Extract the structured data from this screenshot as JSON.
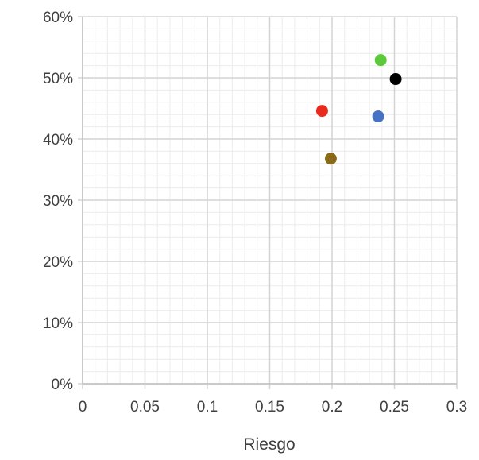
{
  "chart_data": {
    "type": "scatter",
    "title": "",
    "xlabel": "Riesgo",
    "ylabel": "",
    "xlim": [
      0,
      0.3
    ],
    "ylim": [
      0,
      0.6
    ],
    "x_ticks": [
      0,
      0.05,
      0.1,
      0.15,
      0.2,
      0.25,
      0.3
    ],
    "x_tick_labels": [
      "0",
      "0.05",
      "0.1",
      "0.15",
      "0.2",
      "0.25",
      "0.3"
    ],
    "y_ticks": [
      0,
      0.1,
      0.2,
      0.3,
      0.4,
      0.5,
      0.6
    ],
    "y_tick_labels": [
      "0%",
      "10%",
      "20%",
      "30%",
      "40%",
      "50%",
      "60%"
    ],
    "grid": true,
    "minor_grid": true,
    "legend": false,
    "points": [
      {
        "x": 0.192,
        "y": 0.446,
        "color": "#e8291c"
      },
      {
        "x": 0.199,
        "y": 0.368,
        "color": "#8b6a1a"
      },
      {
        "x": 0.237,
        "y": 0.437,
        "color": "#4472c4"
      },
      {
        "x": 0.239,
        "y": 0.529,
        "color": "#5cc93b"
      },
      {
        "x": 0.251,
        "y": 0.498,
        "color": "#000000"
      }
    ]
  }
}
